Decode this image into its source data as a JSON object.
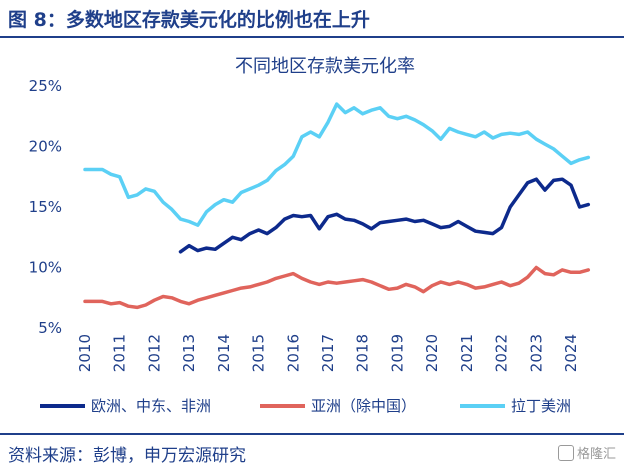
{
  "figure": {
    "title": "图 8：多数地区存款美元化的比例也在上升",
    "source": "资料来源：彭博，申万宏源研究",
    "watermark": "格隆汇"
  },
  "chart_data": {
    "type": "line",
    "title": "不同地区存款美元化率",
    "xlabel": "",
    "ylabel": "",
    "x_ticks": [
      "2010",
      "2011",
      "2012",
      "2013",
      "2014",
      "2015",
      "2016",
      "2017",
      "2018",
      "2019",
      "2020",
      "2021",
      "2022",
      "2023",
      "2024"
    ],
    "y_ticks": [
      "25%",
      "20%",
      "15%",
      "10%",
      "5%"
    ],
    "xlim": [
      2010.0,
      2024.75
    ],
    "ylim": [
      5,
      25
    ],
    "grid": false,
    "legend_position": "bottom",
    "series": [
      {
        "name": "欧洲、中东、非洲",
        "color": "#0d2a8c",
        "points": [
          [
            2012.75,
            11.3
          ],
          [
            2013.0,
            11.8
          ],
          [
            2013.25,
            11.4
          ],
          [
            2013.5,
            11.6
          ],
          [
            2013.75,
            11.5
          ],
          [
            2014.0,
            12.0
          ],
          [
            2014.25,
            12.5
          ],
          [
            2014.5,
            12.3
          ],
          [
            2014.75,
            12.8
          ],
          [
            2015.0,
            13.1
          ],
          [
            2015.25,
            12.8
          ],
          [
            2015.5,
            13.3
          ],
          [
            2015.75,
            14.0
          ],
          [
            2016.0,
            14.3
          ],
          [
            2016.25,
            14.2
          ],
          [
            2016.5,
            14.3
          ],
          [
            2016.75,
            13.2
          ],
          [
            2017.0,
            14.2
          ],
          [
            2017.25,
            14.4
          ],
          [
            2017.5,
            14.0
          ],
          [
            2017.75,
            13.9
          ],
          [
            2018.0,
            13.6
          ],
          [
            2018.25,
            13.2
          ],
          [
            2018.5,
            13.7
          ],
          [
            2018.75,
            13.8
          ],
          [
            2019.0,
            13.9
          ],
          [
            2019.25,
            14.0
          ],
          [
            2019.5,
            13.8
          ],
          [
            2019.75,
            13.9
          ],
          [
            2020.0,
            13.6
          ],
          [
            2020.25,
            13.3
          ],
          [
            2020.5,
            13.4
          ],
          [
            2020.75,
            13.8
          ],
          [
            2021.0,
            13.4
          ],
          [
            2021.25,
            13.0
          ],
          [
            2021.5,
            12.9
          ],
          [
            2021.75,
            12.8
          ],
          [
            2022.0,
            13.3
          ],
          [
            2022.25,
            15.0
          ],
          [
            2022.5,
            16.0
          ],
          [
            2022.75,
            17.0
          ],
          [
            2023.0,
            17.3
          ],
          [
            2023.25,
            16.4
          ],
          [
            2023.5,
            17.2
          ],
          [
            2023.75,
            17.3
          ],
          [
            2024.0,
            16.8
          ],
          [
            2024.25,
            15.0
          ],
          [
            2024.5,
            15.2
          ]
        ]
      },
      {
        "name": "亚洲（除中国）",
        "color": "#e0645c",
        "points": [
          [
            2010.0,
            7.2
          ],
          [
            2010.5,
            7.2
          ],
          [
            2010.75,
            7.0
          ],
          [
            2011.0,
            7.1
          ],
          [
            2011.25,
            6.8
          ],
          [
            2011.5,
            6.7
          ],
          [
            2011.75,
            6.9
          ],
          [
            2012.0,
            7.3
          ],
          [
            2012.25,
            7.6
          ],
          [
            2012.5,
            7.5
          ],
          [
            2012.75,
            7.2
          ],
          [
            2013.0,
            7.0
          ],
          [
            2013.25,
            7.3
          ],
          [
            2013.5,
            7.5
          ],
          [
            2013.75,
            7.7
          ],
          [
            2014.0,
            7.9
          ],
          [
            2014.25,
            8.1
          ],
          [
            2014.5,
            8.3
          ],
          [
            2014.75,
            8.4
          ],
          [
            2015.0,
            8.6
          ],
          [
            2015.25,
            8.8
          ],
          [
            2015.5,
            9.1
          ],
          [
            2015.75,
            9.3
          ],
          [
            2016.0,
            9.5
          ],
          [
            2016.25,
            9.1
          ],
          [
            2016.5,
            8.8
          ],
          [
            2016.75,
            8.6
          ],
          [
            2017.0,
            8.8
          ],
          [
            2017.25,
            8.7
          ],
          [
            2017.5,
            8.8
          ],
          [
            2017.75,
            8.9
          ],
          [
            2018.0,
            9.0
          ],
          [
            2018.25,
            8.8
          ],
          [
            2018.5,
            8.5
          ],
          [
            2018.75,
            8.2
          ],
          [
            2019.0,
            8.3
          ],
          [
            2019.25,
            8.6
          ],
          [
            2019.5,
            8.4
          ],
          [
            2019.75,
            8.0
          ],
          [
            2020.0,
            8.5
          ],
          [
            2020.25,
            8.8
          ],
          [
            2020.5,
            8.6
          ],
          [
            2020.75,
            8.8
          ],
          [
            2021.0,
            8.6
          ],
          [
            2021.25,
            8.3
          ],
          [
            2021.5,
            8.4
          ],
          [
            2021.75,
            8.6
          ],
          [
            2022.0,
            8.8
          ],
          [
            2022.25,
            8.5
          ],
          [
            2022.5,
            8.7
          ],
          [
            2022.75,
            9.2
          ],
          [
            2023.0,
            10.0
          ],
          [
            2023.25,
            9.5
          ],
          [
            2023.5,
            9.4
          ],
          [
            2023.75,
            9.8
          ],
          [
            2024.0,
            9.6
          ],
          [
            2024.25,
            9.6
          ],
          [
            2024.5,
            9.8
          ]
        ]
      },
      {
        "name": "拉丁美洲",
        "color": "#5bd0f5",
        "points": [
          [
            2010.0,
            18.1
          ],
          [
            2010.5,
            18.1
          ],
          [
            2010.75,
            17.7
          ],
          [
            2011.0,
            17.5
          ],
          [
            2011.25,
            15.8
          ],
          [
            2011.5,
            16.0
          ],
          [
            2011.75,
            16.5
          ],
          [
            2012.0,
            16.3
          ],
          [
            2012.25,
            15.4
          ],
          [
            2012.5,
            14.8
          ],
          [
            2012.75,
            14.0
          ],
          [
            2013.0,
            13.8
          ],
          [
            2013.25,
            13.5
          ],
          [
            2013.5,
            14.6
          ],
          [
            2013.75,
            15.2
          ],
          [
            2014.0,
            15.6
          ],
          [
            2014.25,
            15.4
          ],
          [
            2014.5,
            16.2
          ],
          [
            2014.75,
            16.5
          ],
          [
            2015.0,
            16.8
          ],
          [
            2015.25,
            17.2
          ],
          [
            2015.5,
            18.0
          ],
          [
            2015.75,
            18.5
          ],
          [
            2016.0,
            19.2
          ],
          [
            2016.25,
            20.8
          ],
          [
            2016.5,
            21.2
          ],
          [
            2016.75,
            20.8
          ],
          [
            2017.0,
            22.0
          ],
          [
            2017.25,
            23.5
          ],
          [
            2017.5,
            22.8
          ],
          [
            2017.75,
            23.2
          ],
          [
            2018.0,
            22.7
          ],
          [
            2018.25,
            23.0
          ],
          [
            2018.5,
            23.2
          ],
          [
            2018.75,
            22.5
          ],
          [
            2019.0,
            22.3
          ],
          [
            2019.25,
            22.5
          ],
          [
            2019.5,
            22.2
          ],
          [
            2019.75,
            21.8
          ],
          [
            2020.0,
            21.3
          ],
          [
            2020.25,
            20.6
          ],
          [
            2020.5,
            21.5
          ],
          [
            2020.75,
            21.2
          ],
          [
            2021.0,
            21.0
          ],
          [
            2021.25,
            20.8
          ],
          [
            2021.5,
            21.2
          ],
          [
            2021.75,
            20.7
          ],
          [
            2022.0,
            21.0
          ],
          [
            2022.25,
            21.1
          ],
          [
            2022.5,
            21.0
          ],
          [
            2022.75,
            21.2
          ],
          [
            2023.0,
            20.6
          ],
          [
            2023.25,
            20.2
          ],
          [
            2023.5,
            19.8
          ],
          [
            2023.75,
            19.2
          ],
          [
            2024.0,
            18.6
          ],
          [
            2024.25,
            18.9
          ],
          [
            2024.5,
            19.1
          ]
        ]
      }
    ]
  }
}
